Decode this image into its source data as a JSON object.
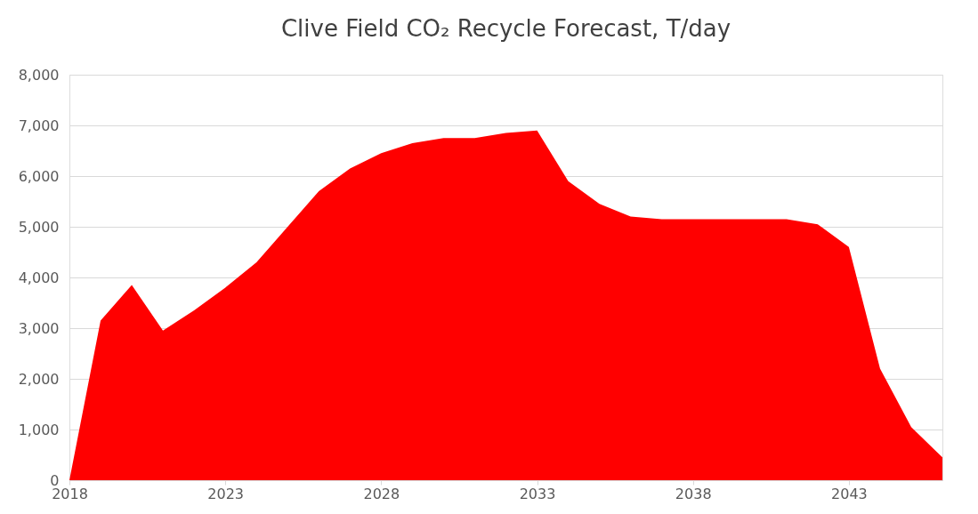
{
  "chart_data": {
    "type": "area",
    "title": "Clive Field CO₂ Recycle Forecast, T/day",
    "x": [
      2018,
      2019,
      2020,
      2021,
      2022,
      2023,
      2024,
      2025,
      2026,
      2027,
      2028,
      2029,
      2030,
      2031,
      2032,
      2033,
      2034,
      2035,
      2036,
      2037,
      2038,
      2039,
      2040,
      2041,
      2042,
      2043,
      2044,
      2045,
      2046
    ],
    "series": [
      {
        "color": "#ff0000",
        "values": [
          0,
          3150,
          3850,
          2950,
          3350,
          3800,
          4300,
          5000,
          5700,
          6150,
          6450,
          6650,
          6750,
          6750,
          6850,
          6900,
          5900,
          5450,
          5200,
          5150,
          5150,
          5150,
          5150,
          5150,
          5050,
          4600,
          2200,
          1050,
          450
        ]
      }
    ],
    "xlim": [
      2018,
      2046
    ],
    "xticks": [
      2018,
      2023,
      2028,
      2033,
      2038,
      2043
    ],
    "ylim": [
      0,
      8000
    ],
    "yticks": [
      0,
      {
        "value": 1000,
        "label": "1,000"
      },
      {
        "value": 2000,
        "label": "2,000"
      },
      {
        "value": 3000,
        "label": "3,000"
      },
      {
        "value": 4000,
        "label": "4,000"
      },
      {
        "value": 5000,
        "label": "5,000"
      },
      {
        "value": 6000,
        "label": "6,000"
      },
      {
        "value": 7000,
        "label": "7,000"
      },
      {
        "value": 8000,
        "label": "8,000"
      }
    ],
    "grid": "y"
  }
}
